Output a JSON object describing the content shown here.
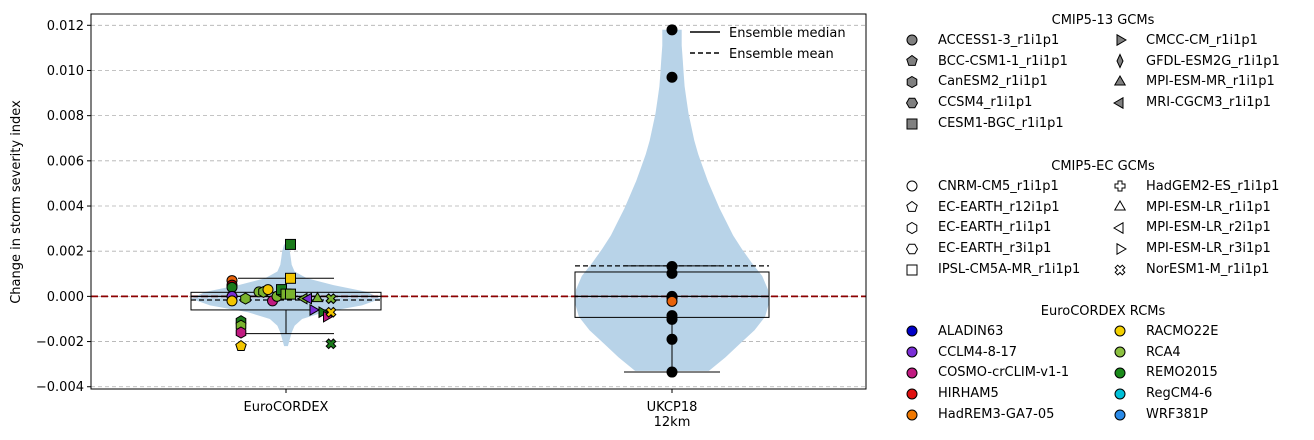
{
  "colors": {
    "violin": "#b8d3e8",
    "zero_line": "#8b0000",
    "grid": "#b0b0b0"
  },
  "chart_data": {
    "type": "violin",
    "ylabel": "Change in storm severity index",
    "ylim": [
      -0.0041,
      0.0125
    ],
    "yticks": [
      -0.004,
      -0.002,
      0.0,
      0.002,
      0.004,
      0.006,
      0.008,
      0.01,
      0.012
    ],
    "ytick_labels": [
      "−0.004",
      "−0.002",
      "0.000",
      "0.002",
      "0.004",
      "0.006",
      "0.008",
      "0.010",
      "0.012"
    ],
    "grid": "horizontal dashed",
    "reference_line": 0.0,
    "categories": [
      {
        "label": "EuroCORDEX",
        "label_lines": [
          "EuroCORDEX"
        ]
      },
      {
        "label": "UKCP18 12km",
        "label_lines": [
          "UKCP18",
          "12km"
        ]
      }
    ],
    "groups": [
      {
        "name": "EuroCORDEX",
        "whisker_low": -0.00165,
        "q1": -0.0006,
        "median": 0.0,
        "q3": 0.00018,
        "whisker_high": 0.0008,
        "mean": -0.00016,
        "density_y": [
          -0.0022,
          -0.0019,
          -0.0016,
          -0.0013,
          -0.001,
          -0.0007,
          -0.0004,
          -0.0001,
          0.0002,
          0.0005,
          0.0008,
          0.0011,
          0.0014,
          0.0017,
          0.002,
          0.0023
        ],
        "density_w": [
          0.02,
          0.04,
          0.06,
          0.09,
          0.17,
          0.4,
          0.8,
          1.0,
          0.85,
          0.5,
          0.22,
          0.09,
          0.06,
          0.05,
          0.04,
          0.02
        ],
        "points": [
          {
            "x": -0.6,
            "y": 0.0007,
            "marker": "o",
            "color": "#e8620a"
          },
          {
            "x": -0.6,
            "y": 0.0005,
            "marker": "o",
            "color": "#b30000"
          },
          {
            "x": -0.6,
            "y": 0.0004,
            "marker": "o",
            "color": "#1a7a1a"
          },
          {
            "x": -0.6,
            "y": 0.0,
            "marker": "o",
            "color": "#7a2ed6"
          },
          {
            "x": -0.6,
            "y": -0.0002,
            "marker": "o",
            "color": "#f2c500"
          },
          {
            "x": -0.5,
            "y": -0.0011,
            "marker": "hexagon",
            "color": "#1a7a1a"
          },
          {
            "x": -0.5,
            "y": -0.0013,
            "marker": "hexagon",
            "color": "#7ab32e"
          },
          {
            "x": -0.5,
            "y": -0.0016,
            "marker": "hexagon",
            "color": "#c01a80"
          },
          {
            "x": -0.5,
            "y": -0.0022,
            "marker": "pentagon",
            "color": "#f2c500"
          },
          {
            "x": -0.45,
            "y": -0.0001,
            "marker": "hexagon",
            "color": "#7ab32e"
          },
          {
            "x": -0.3,
            "y": 0.0002,
            "marker": "o",
            "color": "#7ab32e"
          },
          {
            "x": -0.25,
            "y": 0.0002,
            "marker": "hexagon",
            "color": "#7ab32e"
          },
          {
            "x": -0.2,
            "y": 0.0003,
            "marker": "o",
            "color": "#f2c500"
          },
          {
            "x": -0.15,
            "y": -0.0002,
            "marker": "o",
            "color": "#c01a80"
          },
          {
            "x": -0.1,
            "y": 0.0,
            "marker": "o",
            "color": "#7ab32e"
          },
          {
            "x": -0.05,
            "y": 0.0002,
            "marker": "hexagon",
            "color": "#1a7a1a"
          },
          {
            "x": -0.05,
            "y": 0.0003,
            "marker": "square",
            "color": "#1a7a1a"
          },
          {
            "x": 0.0,
            "y": 0.0001,
            "marker": "square",
            "color": "#7ab32e"
          },
          {
            "x": 0.05,
            "y": 0.0023,
            "marker": "square",
            "color": "#1a7a1a"
          },
          {
            "x": 0.05,
            "y": 0.0008,
            "marker": "square",
            "color": "#f2c500"
          },
          {
            "x": 0.05,
            "y": 0.0001,
            "marker": "square",
            "color": "#7ab32e"
          },
          {
            "x": 0.2,
            "y": -0.0001,
            "marker": "tri-left",
            "color": "#7ab32e"
          },
          {
            "x": 0.25,
            "y": -0.0001,
            "marker": "tri-left",
            "color": "#7a2ed6"
          },
          {
            "x": 0.3,
            "y": -0.0006,
            "marker": "tri-right",
            "color": "#7a2ed6"
          },
          {
            "x": 0.35,
            "y": -0.0001,
            "marker": "tri-up",
            "color": "#7ab32e"
          },
          {
            "x": 0.4,
            "y": -0.0007,
            "marker": "tri-right",
            "color": "#1a7a1a"
          },
          {
            "x": 0.45,
            "y": -0.0009,
            "marker": "tri-right",
            "color": "#c01a80"
          },
          {
            "x": 0.5,
            "y": -0.0001,
            "marker": "x",
            "color": "#7ab32e"
          },
          {
            "x": 0.5,
            "y": -0.0007,
            "marker": "x",
            "color": "#f2c500"
          },
          {
            "x": 0.5,
            "y": -0.0021,
            "marker": "x",
            "color": "#1a7a1a"
          },
          {
            "x": 0.5,
            "y": -0.0001,
            "marker": "x",
            "color": "#7ab32e"
          }
        ]
      },
      {
        "name": "UKCP18 12km",
        "whisker_low": -0.00335,
        "q1": -0.00093,
        "median": 0.0,
        "q3": 0.00108,
        "whisker_high": 0.00135,
        "mean": 0.00135,
        "density_y": [
          -0.0033,
          -0.0027,
          -0.0021,
          -0.0015,
          -0.0009,
          -0.0003,
          0.0003,
          0.0009,
          0.0015,
          0.0021,
          0.0027,
          0.0033,
          0.0039,
          0.0045,
          0.0051,
          0.0057,
          0.0063,
          0.0069,
          0.0075,
          0.0081,
          0.0087,
          0.0093,
          0.0099,
          0.0105,
          0.0111,
          0.0118
        ],
        "density_w": [
          0.38,
          0.55,
          0.7,
          0.85,
          0.96,
          1.0,
          0.99,
          0.93,
          0.82,
          0.72,
          0.63,
          0.56,
          0.49,
          0.43,
          0.37,
          0.32,
          0.27,
          0.23,
          0.2,
          0.17,
          0.15,
          0.13,
          0.12,
          0.11,
          0.1,
          0.1
        ],
        "points": [
          {
            "x": 0,
            "y": 0.0118,
            "marker": "o",
            "color": "#000000"
          },
          {
            "x": 0,
            "y": 0.0097,
            "marker": "o",
            "color": "#000000"
          },
          {
            "x": 0,
            "y": 0.00132,
            "marker": "o",
            "color": "#000000"
          },
          {
            "x": 0,
            "y": 0.00102,
            "marker": "o",
            "color": "#000000"
          },
          {
            "x": 0,
            "y": 0.0,
            "marker": "o",
            "color": "#000000"
          },
          {
            "x": 0,
            "y": -8e-05,
            "marker": "o",
            "color": "#000000"
          },
          {
            "x": 0,
            "y": -0.00022,
            "marker": "o",
            "color": "#e8620a"
          },
          {
            "x": 0,
            "y": -0.00085,
            "marker": "o",
            "color": "#000000"
          },
          {
            "x": 0,
            "y": -0.00102,
            "marker": "o",
            "color": "#000000"
          },
          {
            "x": 0,
            "y": -0.0019,
            "marker": "o",
            "color": "#000000"
          },
          {
            "x": 0,
            "y": -0.00335,
            "marker": "o",
            "color": "#000000"
          }
        ]
      }
    ],
    "line_legend": {
      "placement": "upper right",
      "entries": [
        {
          "label": "Ensemble median",
          "style": "solid"
        },
        {
          "label": "Ensemble mean",
          "style": "dashed"
        }
      ]
    }
  },
  "legends": [
    {
      "title": "CMIP5-13 GCMs",
      "items": [
        {
          "label": "ACCESS1-3_r1i1p1",
          "marker": "o",
          "fill": "#808080"
        },
        {
          "label": "BCC-CSM1-1_r1i1p1",
          "marker": "pentagon",
          "fill": "#808080"
        },
        {
          "label": "CanESM2_r1i1p1",
          "marker": "hexagon",
          "fill": "#808080"
        },
        {
          "label": "CCSM4_r1i1p1",
          "marker": "hexagon2",
          "fill": "#808080"
        },
        {
          "label": "CESM1-BGC_r1i1p1",
          "marker": "square",
          "fill": "#808080"
        },
        {
          "label": "CMCC-CM_r1i1p1",
          "marker": "tri-right",
          "fill": "#808080"
        },
        {
          "label": "GFDL-ESM2G_r1i1p1",
          "marker": "thin-diamond",
          "fill": "#808080"
        },
        {
          "label": "MPI-ESM-MR_r1i1p1",
          "marker": "tri-up",
          "fill": "#808080"
        },
        {
          "label": "MRI-CGCM3_r1i1p1",
          "marker": "tri-left",
          "fill": "#808080"
        }
      ]
    },
    {
      "title": "CMIP5-EC GCMs",
      "items": [
        {
          "label": "CNRM-CM5_r1i1p1",
          "marker": "o",
          "fill": "#ffffff"
        },
        {
          "label": "EC-EARTH_r12i1p1",
          "marker": "pentagon",
          "fill": "#ffffff"
        },
        {
          "label": "EC-EARTH_r1i1p1",
          "marker": "hexagon",
          "fill": "#ffffff"
        },
        {
          "label": "EC-EARTH_r3i1p1",
          "marker": "hexagon2",
          "fill": "#ffffff"
        },
        {
          "label": "IPSL-CM5A-MR_r1i1p1",
          "marker": "square",
          "fill": "#ffffff"
        },
        {
          "label": "HadGEM2-ES_r1i1p1",
          "marker": "plus",
          "fill": "#ffffff"
        },
        {
          "label": "MPI-ESM-LR_r1i1p1",
          "marker": "tri-up",
          "fill": "#ffffff"
        },
        {
          "label": "MPI-ESM-LR_r2i1p1",
          "marker": "tri-left",
          "fill": "#ffffff"
        },
        {
          "label": "MPI-ESM-LR_r3i1p1",
          "marker": "tri-right",
          "fill": "#ffffff"
        },
        {
          "label": "NorESM1-M_r1i1p1",
          "marker": "x",
          "fill": "#ffffff"
        }
      ]
    },
    {
      "title": "EuroCORDEX RCMs",
      "items": [
        {
          "label": "ALADIN63",
          "marker": "o",
          "fill": "#0000c8"
        },
        {
          "label": "CCLM4-8-17",
          "marker": "o",
          "fill": "#7a2ed6"
        },
        {
          "label": "COSMO-crCLIM-v1-1",
          "marker": "o",
          "fill": "#c01a80"
        },
        {
          "label": "HIRHAM5",
          "marker": "o",
          "fill": "#e01010"
        },
        {
          "label": "HadREM3-GA7-05",
          "marker": "o",
          "fill": "#f07800"
        },
        {
          "label": "RACMO22E",
          "marker": "o",
          "fill": "#f2d000"
        },
        {
          "label": "RCA4",
          "marker": "o",
          "fill": "#8cc040"
        },
        {
          "label": "REMO2015",
          "marker": "o",
          "fill": "#1a8a1a"
        },
        {
          "label": "RegCM4-6",
          "marker": "o",
          "fill": "#00c0d8"
        },
        {
          "label": "WRF381P",
          "marker": "o",
          "fill": "#2a8ae8"
        }
      ]
    }
  ]
}
